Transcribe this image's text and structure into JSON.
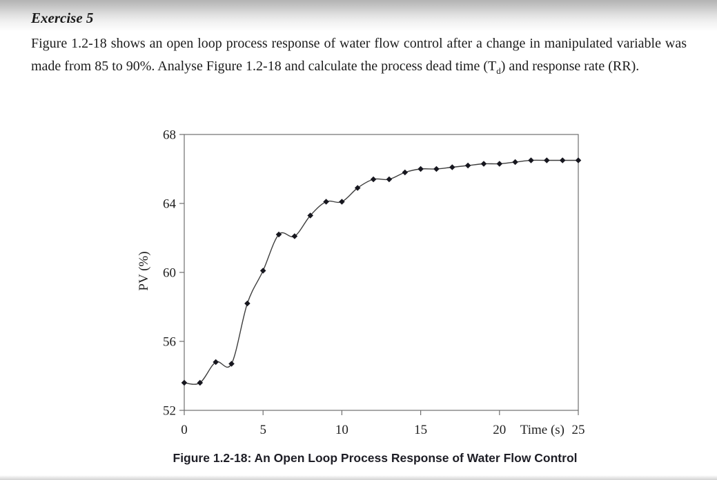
{
  "document": {
    "heading": "Exercise 5",
    "paragraph": {
      "part1": "Figure 1.2-18 shows an open loop process response of water flow control after a change in manipulated variable was made from 85 to 90%. Analyse Figure 1.2-18 and calculate the process dead time (T",
      "subscript": "d",
      "part2": ") and response rate (RR)."
    }
  },
  "chart_data": {
    "type": "line",
    "caption": "Figure 1.2-18: An Open Loop Process Response of Water Flow Control",
    "xlabel": "Time (s)",
    "ylabel": "PV (%)",
    "x": [
      0,
      1,
      2,
      3,
      4,
      5,
      6,
      7,
      8,
      9,
      10,
      11,
      12,
      13,
      14,
      15,
      16,
      17,
      18,
      19,
      20,
      21,
      22,
      23,
      24,
      25
    ],
    "y": [
      53.6,
      53.6,
      54.8,
      54.7,
      58.2,
      60.1,
      62.2,
      62.1,
      63.3,
      64.1,
      64.1,
      64.9,
      65.4,
      65.4,
      65.8,
      66.0,
      66.0,
      66.1,
      66.2,
      66.3,
      66.3,
      66.4,
      66.5,
      66.5,
      66.5,
      66.5
    ],
    "xlim": [
      0,
      25
    ],
    "ylim": [
      52,
      68
    ],
    "xticks": [
      0,
      5,
      10,
      15,
      20,
      25
    ],
    "yticks": [
      52,
      56,
      60,
      64,
      68
    ],
    "marker": "diamond",
    "grid": false,
    "legend": "none",
    "line_color": "#3d3d3d",
    "marker_color": "#17171f",
    "axis_color": "#6e6e6e",
    "text_color": "#1f1f1f"
  }
}
